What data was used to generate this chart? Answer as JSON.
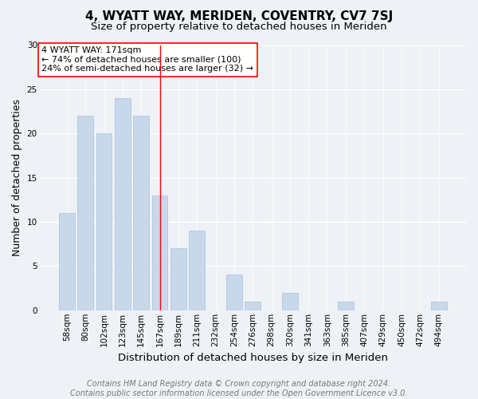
{
  "title": "4, WYATT WAY, MERIDEN, COVENTRY, CV7 7SJ",
  "subtitle": "Size of property relative to detached houses in Meriden",
  "xlabel": "Distribution of detached houses by size in Meriden",
  "ylabel": "Number of detached properties",
  "categories": [
    "58sqm",
    "80sqm",
    "102sqm",
    "123sqm",
    "145sqm",
    "167sqm",
    "189sqm",
    "211sqm",
    "232sqm",
    "254sqm",
    "276sqm",
    "298sqm",
    "320sqm",
    "341sqm",
    "363sqm",
    "385sqm",
    "407sqm",
    "429sqm",
    "450sqm",
    "472sqm",
    "494sqm"
  ],
  "values": [
    11,
    22,
    20,
    24,
    22,
    13,
    7,
    9,
    0,
    4,
    1,
    0,
    2,
    0,
    0,
    1,
    0,
    0,
    0,
    0,
    1
  ],
  "bar_color": "#c8d8eb",
  "bar_edgecolor": "#b0c8de",
  "vline_x": 5,
  "vline_color": "red",
  "annotation_line1": "4 WYATT WAY: 171sqm",
  "annotation_line2": "← 74% of detached houses are smaller (100)",
  "annotation_line3": "24% of semi-detached houses are larger (32) →",
  "annotation_box_color": "white",
  "annotation_box_edgecolor": "red",
  "ylim": [
    0,
    30
  ],
  "yticks": [
    0,
    5,
    10,
    15,
    20,
    25,
    30
  ],
  "footnote": "Contains HM Land Registry data © Crown copyright and database right 2024.\nContains public sector information licensed under the Open Government Licence v3.0.",
  "background_color": "#eef2f6",
  "axes_background_color": "#eef2f6",
  "grid_color": "white",
  "title_fontsize": 11,
  "subtitle_fontsize": 9.5,
  "tick_fontsize": 7.5,
  "ylabel_fontsize": 9,
  "xlabel_fontsize": 9.5,
  "footnote_fontsize": 7,
  "annotation_fontsize": 8
}
